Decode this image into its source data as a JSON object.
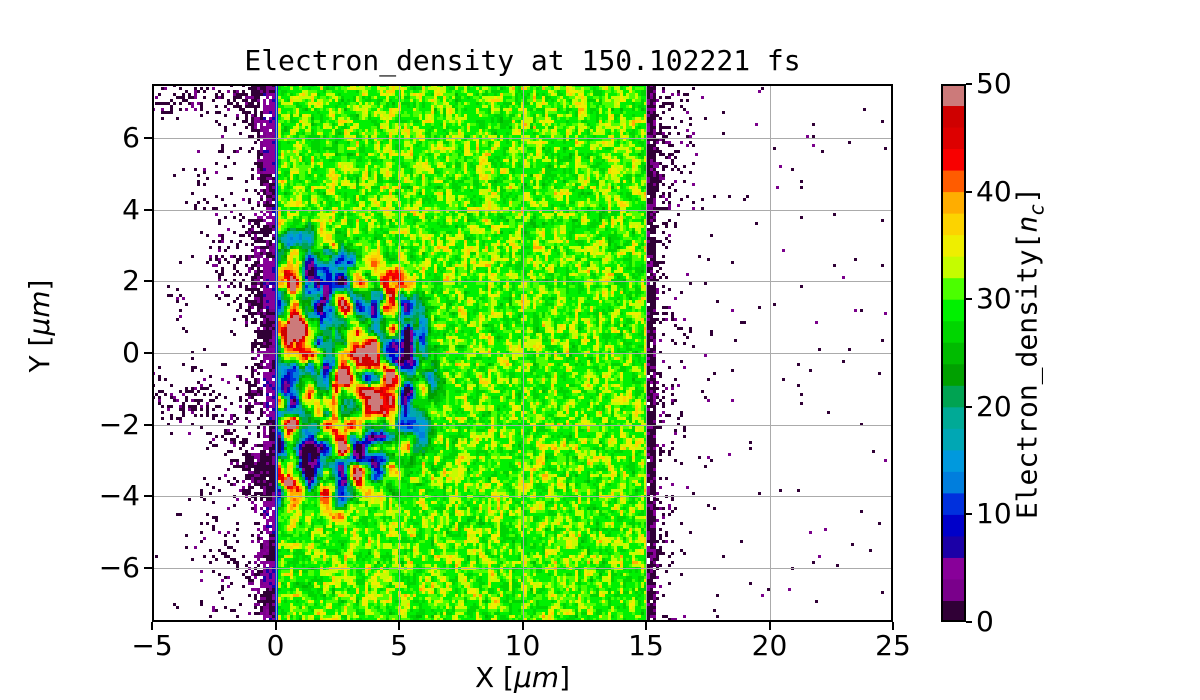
{
  "chart_data": {
    "type": "heatmap",
    "title": "Electron_density at 150.102221 fs",
    "time_fs": 150.102221,
    "xlabel": {
      "pre": "X [",
      "italic": "μm",
      "post": "]"
    },
    "ylabel": {
      "pre": "Y [",
      "italic": "μm",
      "post": "]"
    },
    "xlim": [
      -5,
      25
    ],
    "ylim": [
      -7.5,
      7.5
    ],
    "xticks": {
      "values": [
        -5,
        0,
        5,
        10,
        15,
        20,
        25
      ],
      "labels": [
        "−5",
        "0",
        "5",
        "10",
        "15",
        "20",
        "25"
      ]
    },
    "yticks": {
      "values": [
        6,
        4,
        2,
        0,
        -2,
        -4,
        -6
      ],
      "labels": [
        "6",
        "4",
        "2",
        "0",
        "−2",
        "−4",
        "−6"
      ]
    },
    "grid": {
      "x_values": [
        0,
        5,
        10,
        15,
        20
      ],
      "y_values": [
        -6,
        -4,
        -2,
        0,
        2,
        4,
        6
      ],
      "color": "#ababab",
      "on": true
    },
    "colorbar": {
      "label": {
        "pre": "Electron_density[",
        "var": "n",
        "sub": "c",
        "post": "]"
      },
      "tick_values": [
        0,
        10,
        20,
        30,
        40,
        50
      ],
      "tick_labels": [
        "0",
        "10",
        "20",
        "30",
        "40",
        "50"
      ],
      "vmin": 0,
      "vmax": 50,
      "n_bands": 25,
      "colormap": "nipy_spectral",
      "colormap_stops": [
        [
          0.0,
          0.0,
          0.0,
          0.0
        ],
        [
          0.05,
          0.4667,
          0.0,
          0.5333
        ],
        [
          0.1,
          0.5333,
          0.0,
          0.6
        ],
        [
          0.15,
          0.0,
          0.0,
          0.6667
        ],
        [
          0.2,
          0.0,
          0.0,
          0.8667
        ],
        [
          0.25,
          0.0,
          0.4667,
          0.8667
        ],
        [
          0.3,
          0.0,
          0.6,
          0.8667
        ],
        [
          0.35,
          0.0,
          0.6667,
          0.6667
        ],
        [
          0.4,
          0.0,
          0.6667,
          0.5333
        ],
        [
          0.45,
          0.0,
          0.6,
          0.0
        ],
        [
          0.5,
          0.0,
          0.7333,
          0.0
        ],
        [
          0.55,
          0.0,
          0.8667,
          0.0
        ],
        [
          0.6,
          0.0,
          1.0,
          0.0
        ],
        [
          0.65,
          0.7333,
          1.0,
          0.0
        ],
        [
          0.7,
          0.9333,
          0.9333,
          0.0
        ],
        [
          0.75,
          1.0,
          0.8,
          0.0
        ],
        [
          0.8,
          1.0,
          0.6,
          0.0
        ],
        [
          0.85,
          1.0,
          0.0,
          0.0
        ],
        [
          0.9,
          0.8667,
          0.0,
          0.0
        ],
        [
          0.95,
          0.8,
          0.0,
          0.0
        ],
        [
          1.0,
          0.8,
          0.8,
          0.8
        ]
      ]
    },
    "field": {
      "description": "PIC-simulation electron density: vacuum (white, sparse near-zero speckles) for X<0 and X>15; uniform plasma slab ~30 nc for 0<X<15 with small-scale ripple; laser-driven turbulent interaction region spanning 2-50 nc for 0<X<7.4, -4.8<Y<3.9; dense dark rarefaction layers at the slab front (-1.3<X<0) and rear (15<X<15.5) edges",
      "vacuum_left_x": [
        -5,
        0
      ],
      "slab_x": [
        0,
        15
      ],
      "slab_mean_nc": 30,
      "interaction_x": [
        0,
        7.4
      ],
      "interaction_y": [
        -4.8,
        3.9
      ],
      "interaction_range_nc": [
        2,
        50
      ],
      "edge_line_value_nc": 11,
      "rear_speckle_x": [
        15,
        18.5
      ],
      "seed": 7
    },
    "background": "#ffffff",
    "text_color": "#000000"
  }
}
